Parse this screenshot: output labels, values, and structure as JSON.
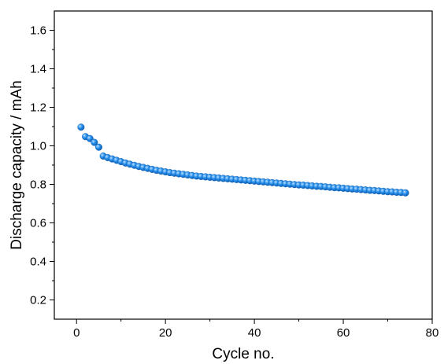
{
  "chart_data": {
    "type": "scatter",
    "title": "",
    "xlabel": "Cycle no.",
    "ylabel": "Discharge capacity / mAh",
    "xlim": [
      -5,
      80
    ],
    "ylim": [
      0.1,
      1.7
    ],
    "xticks": [
      0,
      20,
      40,
      60,
      80
    ],
    "xtick_labels": [
      "0",
      "20",
      "40",
      "60",
      "80"
    ],
    "yticks": [
      0.2,
      0.4,
      0.6,
      0.8,
      1.0,
      1.2,
      1.4,
      1.6
    ],
    "ytick_labels": [
      "0.2",
      "0.4",
      "0.6",
      "0.8",
      "1.0",
      "1.2",
      "1.4",
      "1.6"
    ],
    "grid": false,
    "legend": "none",
    "marker_color": "#1e8be6",
    "series": [
      {
        "x": [
          1,
          2,
          3,
          4,
          5,
          6,
          7,
          8,
          9,
          10,
          11,
          12,
          13,
          14,
          15,
          16,
          17,
          18,
          19,
          20,
          21,
          22,
          23,
          24,
          25,
          26,
          27,
          28,
          29,
          30,
          31,
          32,
          33,
          34,
          35,
          36,
          37,
          38,
          39,
          40,
          41,
          42,
          43,
          44,
          45,
          46,
          47,
          48,
          49,
          50,
          51,
          52,
          53,
          54,
          55,
          56,
          57,
          58,
          59,
          60,
          61,
          62,
          63,
          64,
          65,
          66,
          67,
          68,
          69,
          70,
          71,
          72,
          73,
          74
        ],
        "y": [
          1.097,
          1.048,
          1.038,
          1.018,
          0.993,
          0.947,
          0.939,
          0.932,
          0.925,
          0.918,
          0.911,
          0.905,
          0.899,
          0.893,
          0.888,
          0.883,
          0.878,
          0.873,
          0.869,
          0.865,
          0.861,
          0.858,
          0.855,
          0.852,
          0.849,
          0.846,
          0.843,
          0.841,
          0.839,
          0.837,
          0.835,
          0.833,
          0.831,
          0.829,
          0.827,
          0.825,
          0.823,
          0.821,
          0.819,
          0.817,
          0.815,
          0.813,
          0.811,
          0.809,
          0.807,
          0.805,
          0.803,
          0.801,
          0.799,
          0.797,
          0.796,
          0.794,
          0.792,
          0.79,
          0.789,
          0.787,
          0.785,
          0.783,
          0.782,
          0.78,
          0.778,
          0.776,
          0.775,
          0.773,
          0.771,
          0.769,
          0.768,
          0.766,
          0.764,
          0.762,
          0.761,
          0.759,
          0.758,
          0.756
        ]
      }
    ]
  }
}
